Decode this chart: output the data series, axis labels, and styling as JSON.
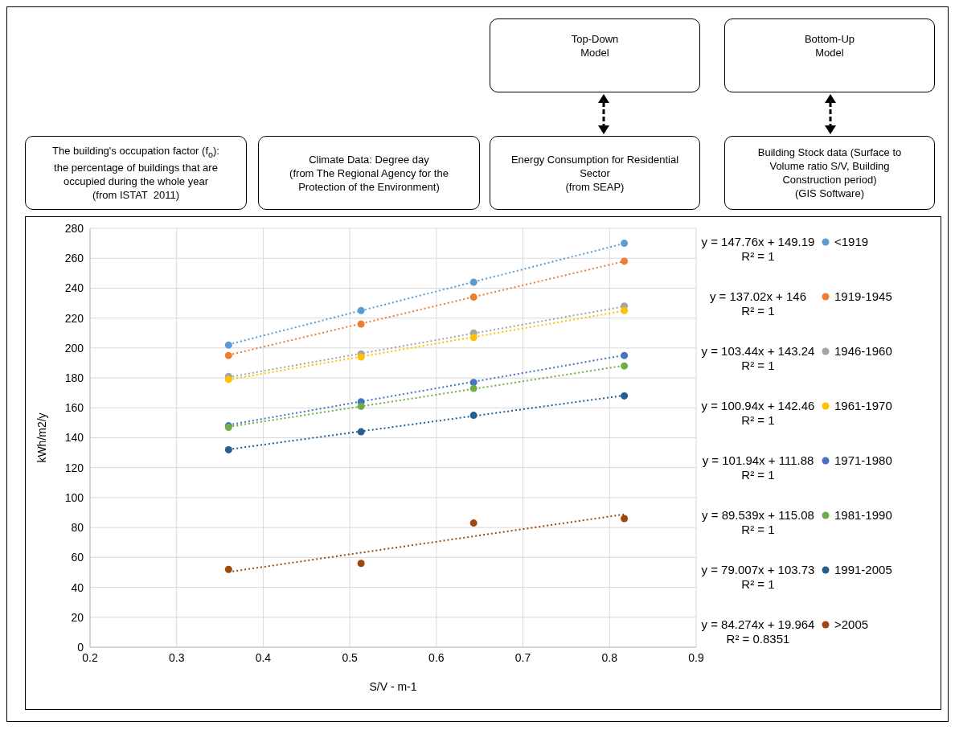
{
  "chart_data": {
    "type": "scatter",
    "xlabel": "S/V - m-1",
    "ylabel": "kWh/m2/y",
    "xlim": [
      0.2,
      0.9
    ],
    "xticks": [
      0.2,
      0.3,
      0.4,
      0.5,
      0.6,
      0.7,
      0.8,
      0.9
    ],
    "ylim": [
      0,
      280
    ],
    "yticks": [
      0,
      20,
      40,
      60,
      80,
      100,
      120,
      140,
      160,
      180,
      200,
      220,
      240,
      260,
      280
    ],
    "grid": true,
    "legend": "right",
    "marker": "circle",
    "series": [
      {
        "name": "<1919",
        "color": "#5b9bd5",
        "x": [
          0.36,
          0.513,
          0.643,
          0.817
        ],
        "values": [
          202,
          225,
          244,
          270
        ]
      },
      {
        "name": "1919-1945",
        "color": "#ed7d31",
        "x": [
          0.36,
          0.513,
          0.643,
          0.817
        ],
        "values": [
          195,
          216,
          234,
          258
        ]
      },
      {
        "name": "1946-1960",
        "color": "#a5a5a5",
        "x": [
          0.36,
          0.513,
          0.643,
          0.817
        ],
        "values": [
          181,
          196,
          210,
          228
        ]
      },
      {
        "name": "1961-1970",
        "color": "#ffc000",
        "x": [
          0.36,
          0.513,
          0.643,
          0.817
        ],
        "values": [
          179,
          194,
          207,
          225
        ]
      },
      {
        "name": "1971-1980",
        "color": "#4472c4",
        "x": [
          0.36,
          0.513,
          0.643,
          0.817
        ],
        "values": [
          148,
          164,
          177,
          195
        ]
      },
      {
        "name": "1981-1990",
        "color": "#70ad47",
        "x": [
          0.36,
          0.513,
          0.643,
          0.817
        ],
        "values": [
          147,
          161,
          173,
          188
        ]
      },
      {
        "name": "1991-2005",
        "color": "#255e91",
        "x": [
          0.36,
          0.513,
          0.643,
          0.817
        ],
        "values": [
          132,
          144,
          155,
          168
        ]
      },
      {
        "name": ">2005",
        "color": "#9e480e",
        "x": [
          0.36,
          0.513,
          0.643,
          0.817
        ],
        "values": [
          52,
          56,
          83,
          86
        ]
      },
      {
        "type": "line",
        "color": "#5b9bd5",
        "line_style": "dotted",
        "marker": "none",
        "x": [
          0.36,
          0.817
        ],
        "values": [
          202.4,
          269.9
        ]
      },
      {
        "type": "line",
        "color": "#ed7d31",
        "line_style": "dotted",
        "marker": "none",
        "x": [
          0.36,
          0.817
        ],
        "values": [
          195.3,
          258.0
        ]
      },
      {
        "type": "line",
        "color": "#a5a5a5",
        "line_style": "dotted",
        "marker": "none",
        "x": [
          0.36,
          0.817
        ],
        "values": [
          180.5,
          227.8
        ]
      },
      {
        "type": "line",
        "color": "#ffc000",
        "line_style": "dotted",
        "marker": "none",
        "x": [
          0.36,
          0.817
        ],
        "values": [
          178.8,
          224.9
        ]
      },
      {
        "type": "line",
        "color": "#4472c4",
        "line_style": "dotted",
        "marker": "none",
        "x": [
          0.36,
          0.817
        ],
        "values": [
          148.6,
          195.2
        ]
      },
      {
        "type": "line",
        "color": "#70ad47",
        "line_style": "dotted",
        "marker": "none",
        "x": [
          0.36,
          0.817
        ],
        "values": [
          147.3,
          188.2
        ]
      },
      {
        "type": "line",
        "color": "#255e91",
        "line_style": "dotted",
        "marker": "none",
        "x": [
          0.36,
          0.817
        ],
        "values": [
          132.2,
          168.3
        ]
      },
      {
        "type": "line",
        "color": "#9e480e",
        "line_style": "dotted",
        "marker": "none",
        "x": [
          0.36,
          0.817
        ],
        "values": [
          50.3,
          88.8
        ]
      }
    ],
    "annotations": [
      "Top-Down\nModel",
      "Bottom-Up\nModel",
      "The building's occupation factor (f$_{o}$):\nthe percentage of buildings that are\noccupied during the whole year\n(from ISTAT  2011)",
      "Climate Data: Degree day\n(from The Regional Agency for the\nProtection of the Environment)",
      "Energy Consumption for Residential\nSector\n(from SEAP)",
      "Building Stock data (Surface to\nVolume ratio S/V, Building\nConstruction period)\n(GIS Software)",
      "y = 147.76x + 149.19\nR² = 1",
      "y = 137.02x + 146\nR² = 1",
      "y = 103.44x + 143.24\nR² = 1",
      "y = 100.94x + 142.46\nR² = 1",
      "y = 101.94x + 111.88\nR² = 1",
      "y = 89.539x + 115.08\nR² = 1",
      "y = 79.007x + 103.73\nR² = 1",
      "y = 84.274x + 19.964\nR² = 0.8351"
    ]
  }
}
